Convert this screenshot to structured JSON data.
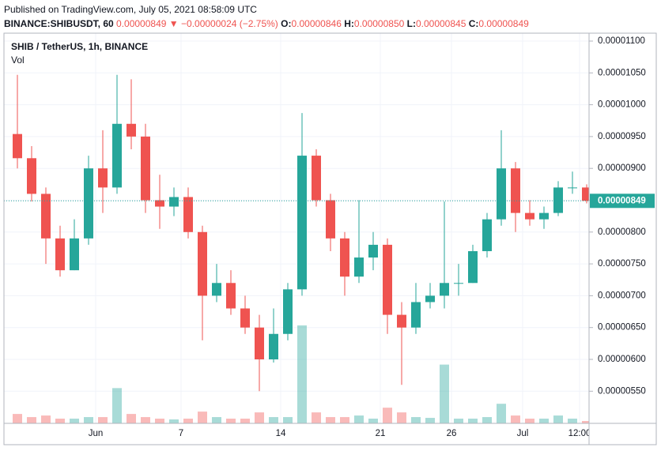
{
  "header": {
    "published": "Published on TradingView.com, July 05, 2021 08:58:09 UTC",
    "symbol": "BINANCE:SHIBUSDT, 60",
    "price": "0.00000849",
    "arrow": "▼",
    "change": "−0.00000024 (−2.75%)",
    "o_label": "O:",
    "o": "0.00000846",
    "h_label": "H:",
    "h": "0.00000850",
    "l_label": "L:",
    "l": "0.00000845",
    "c_label": "C:",
    "c": "0.00000849"
  },
  "chart_data": {
    "type": "candlestick",
    "title": "SHIB / TetherUS, 1h, BINANCE",
    "volume_label": "Vol",
    "categories": [
      null,
      null,
      null,
      null,
      null,
      null,
      "Jun",
      null,
      null,
      null,
      null,
      null,
      "7",
      null,
      null,
      null,
      null,
      null,
      null,
      "14",
      null,
      null,
      null,
      null,
      null,
      null,
      "21",
      null,
      null,
      null,
      null,
      "26",
      null,
      null,
      null,
      null,
      "Jul",
      null,
      null,
      null,
      "12:00"
    ],
    "open": [
      9.54e-06,
      9.16e-06,
      8.6e-06,
      7.9e-06,
      7.4e-06,
      7.9e-06,
      9e-06,
      8.7e-06,
      9.7e-06,
      9.5e-06,
      8.5e-06,
      8.4e-06,
      8.55e-06,
      8e-06,
      7e-06,
      7.2e-06,
      6.8e-06,
      6.5e-06,
      6e-06,
      6.4e-06,
      7.1e-06,
      9.2e-06,
      8.5e-06,
      7.9e-06,
      7.3e-06,
      7.6e-06,
      7.8e-06,
      6.7e-06,
      6.5e-06,
      6.9e-06,
      7e-06,
      7.2e-06,
      7.2e-06,
      7.7e-06,
      8.2e-06,
      9e-06,
      8.3e-06,
      8.2e-06,
      8.3e-06,
      8.7e-06,
      8.7e-06
    ],
    "high": [
      1.047e-05,
      9.35e-06,
      8.7e-06,
      8.1e-06,
      8.2e-06,
      9.2e-06,
      9.6e-06,
      1.047e-05,
      1.04e-05,
      9.7e-06,
      8.9e-06,
      8.7e-06,
      8.7e-06,
      8.1e-06,
      7.5e-06,
      7.4e-06,
      7e-06,
      6.7e-06,
      6.8e-06,
      7.2e-06,
      9.87e-06,
      9.3e-06,
      8.6e-06,
      8e-06,
      8.5e-06,
      8e-06,
      7.9e-06,
      6.9e-06,
      7.2e-06,
      7.2e-06,
      8.48e-06,
      7.5e-06,
      7.8e-06,
      8.3e-06,
      9.6e-06,
      9.1e-06,
      8.5e-06,
      8.4e-06,
      8.8e-06,
      8.95e-06,
      8.75e-06
    ],
    "low": [
      9e-06,
      8.48e-06,
      7.5e-06,
      7.3e-06,
      7.4e-06,
      7.8e-06,
      8.3e-06,
      8.6e-06,
      9.3e-06,
      8.3e-06,
      8.05e-06,
      8.25e-06,
      7.9e-06,
      6.3e-06,
      6.9e-06,
      6.7e-06,
      6.4e-06,
      5.5e-06,
      5.95e-06,
      6.3e-06,
      7e-06,
      8.4e-06,
      7.7e-06,
      7e-06,
      7.2e-06,
      7.4e-06,
      6.4e-06,
      5.6e-06,
      6.4e-06,
      6.8e-06,
      6.8e-06,
      7e-06,
      7.2e-06,
      7.6e-06,
      8.1e-06,
      8e-06,
      8.1e-06,
      8.05e-06,
      8.25e-06,
      8.6e-06,
      8.45e-06
    ],
    "close": [
      9.16e-06,
      8.6e-06,
      7.9e-06,
      7.4e-06,
      7.9e-06,
      9e-06,
      8.7e-06,
      9.7e-06,
      9.5e-06,
      8.5e-06,
      8.4e-06,
      8.55e-06,
      8e-06,
      7e-06,
      7.2e-06,
      6.8e-06,
      6.5e-06,
      6e-06,
      6.4e-06,
      7.1e-06,
      9.2e-06,
      8.5e-06,
      7.9e-06,
      7.3e-06,
      7.6e-06,
      7.8e-06,
      6.7e-06,
      6.5e-06,
      6.9e-06,
      7e-06,
      7.2e-06,
      7.2e-06,
      7.7e-06,
      8.2e-06,
      9e-06,
      8.3e-06,
      8.2e-06,
      8.3e-06,
      8.7e-06,
      8.7e-06,
      8.49e-06
    ],
    "volume": [
      12,
      8,
      10,
      6,
      6,
      8,
      8,
      45,
      12,
      8,
      6,
      5,
      6,
      15,
      8,
      6,
      6,
      14,
      8,
      8,
      125,
      14,
      8,
      8,
      10,
      6,
      20,
      14,
      8,
      7,
      75,
      6,
      6,
      8,
      25,
      10,
      6,
      6,
      10,
      6,
      3
    ],
    "up_color": "#26a69a",
    "down_color": "#ef5350",
    "last_price": {
      "value": 8.49e-06,
      "label": "0.00000849"
    },
    "ylim": [
      4.995e-06,
      1.1124e-05
    ],
    "yticks": [
      {
        "value": 5.5e-06,
        "label": "0.00000550"
      },
      {
        "value": 6e-06,
        "label": "0.00000600"
      },
      {
        "value": 6.5e-06,
        "label": "0.00000650"
      },
      {
        "value": 7e-06,
        "label": "0.00000700"
      },
      {
        "value": 7.5e-06,
        "label": "0.00000750"
      },
      {
        "value": 8e-06,
        "label": "0.00000800"
      },
      {
        "value": 8.5e-06,
        "label": "0.00000850"
      },
      {
        "value": 9e-06,
        "label": "0.00000900"
      },
      {
        "value": 9.5e-06,
        "label": "0.00000950"
      },
      {
        "value": 1e-05,
        "label": "0.00001000"
      },
      {
        "value": 1.05e-05,
        "label": "0.00001050"
      },
      {
        "value": 1.1e-05,
        "label": "0.00001100"
      }
    ],
    "grid": true
  }
}
